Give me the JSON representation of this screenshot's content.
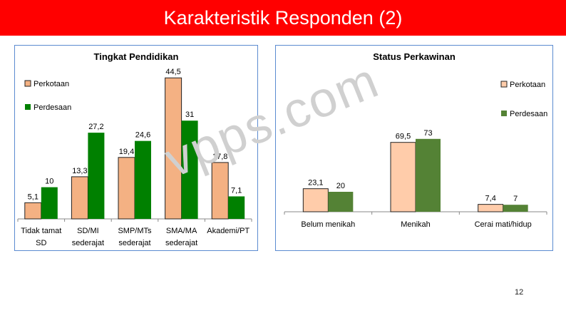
{
  "slide": {
    "title": "Karakteristik Responden (2)",
    "page_number": "12",
    "watermark": "vpps.com"
  },
  "colors": {
    "title_bar": "#ff0000",
    "perkotaan_1": "#f4b183",
    "perdesaan_1": "#008000",
    "perkotaan_2": "#ffccaa",
    "perdesaan_2": "#548235",
    "frame": "#5b8bd0"
  },
  "chart_data": [
    {
      "type": "bar",
      "title": "Tingkat Pendidikan",
      "categories": [
        [
          "Tidak tamat",
          "SD"
        ],
        [
          "SD/MI",
          "sederajat"
        ],
        [
          "SMP/MTs",
          "sederajat"
        ],
        [
          "SMA/MA",
          "sederajat"
        ],
        [
          "Akademi/PT"
        ]
      ],
      "series": [
        {
          "name": "Perkotaan",
          "values": [
            5.1,
            13.3,
            19.4,
            44.5,
            17.8
          ],
          "labels": [
            "5,1",
            "13,3",
            "19,4",
            "44,5",
            "17,8"
          ]
        },
        {
          "name": "Perdesaan",
          "values": [
            10,
            27.2,
            24.6,
            31,
            7.1
          ],
          "labels": [
            "10",
            "27,2",
            "24,6",
            "31",
            "7,1"
          ]
        }
      ],
      "ylim": [
        0,
        45
      ],
      "legend": "top-left",
      "grid": false
    },
    {
      "type": "bar",
      "title": "Status Perkawinan",
      "categories": [
        [
          "Belum menikah"
        ],
        [
          "Menikah"
        ],
        [
          "Cerai mati/hidup"
        ]
      ],
      "series": [
        {
          "name": "Perkotaan",
          "values": [
            23.1,
            69.5,
            7.4
          ],
          "labels": [
            "23,1",
            "69,5",
            "7,4"
          ]
        },
        {
          "name": "Perdesaan",
          "values": [
            20,
            73,
            7
          ],
          "labels": [
            "20",
            "73",
            "7"
          ]
        }
      ],
      "ylim": [
        0,
        100
      ],
      "legend": "top-right",
      "grid": false
    }
  ]
}
